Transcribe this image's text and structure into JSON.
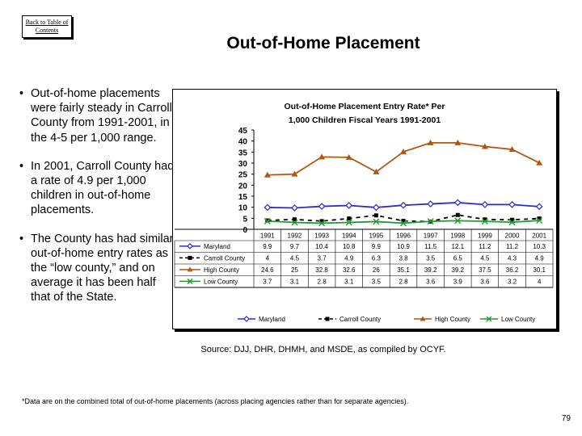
{
  "nav": {
    "back_link": "Back to Table of Contents"
  },
  "page": {
    "title": "Out-of-Home Placement",
    "bullets": [
      "Out-of-home placements were fairly steady in Carroll County from 1991-2001, in the 4-5 per 1,000 range.",
      "In 2001, Carroll County had a rate of 4.9 per 1,000 children in out-of-home placements.",
      "The County has had similar out-of-home entry rates as the “low county,” and on average it has been half that of the State."
    ],
    "source": "Source: DJJ, DHR, DHMH, and MSDE, as compiled by OCYF.",
    "footnote": "*Data are on the combined total of out-of-home placements (across placing agencies rather than for separate agencies).",
    "page_number": "79"
  },
  "chart_data": {
    "type": "line",
    "title_line1": "Out-of-Home Placement Entry Rate* Per",
    "title_line2": "1,000 Children Fiscal Years 1991-2001",
    "categories": [
      "1991",
      "1992",
      "1993",
      "1994",
      "1995",
      "1996",
      "1997",
      "1998",
      "1999",
      "2000",
      "2001"
    ],
    "ylim": [
      0,
      45
    ],
    "yticks": [
      "0",
      "5",
      "10",
      "15",
      "20",
      "25",
      "30",
      "35",
      "40",
      "45"
    ],
    "legend_position": "bottom",
    "series": [
      {
        "name": "Maryland",
        "color": "#2b2bd0",
        "marker": "diamond-open",
        "dash": "",
        "values": [
          9.9,
          9.7,
          10.4,
          10.8,
          9.9,
          10.9,
          11.5,
          12.1,
          11.2,
          11.2,
          10.3
        ],
        "labels": [
          "9.9",
          "9.7",
          "10.4",
          "10.8",
          "9.9",
          "10.9",
          "11.5",
          "12.1",
          "11.2",
          "11.2",
          "10.3"
        ]
      },
      {
        "name": "Carroll County",
        "color": "#000000",
        "marker": "square",
        "dash": "5,5",
        "values": [
          4,
          4.5,
          3.7,
          4.9,
          6.3,
          3.8,
          3.5,
          6.5,
          4.5,
          4.3,
          4.9
        ],
        "labels": [
          "4",
          "4.5",
          "3.7",
          "4.9",
          "6.3",
          "3.8",
          "3.5",
          "6.5",
          "4.5",
          "4.3",
          "4.9"
        ]
      },
      {
        "name": "High County",
        "color": "#b5560f",
        "marker": "triangle",
        "dash": "",
        "values": [
          24.6,
          25,
          32.8,
          32.6,
          26,
          35.1,
          39.2,
          39.2,
          37.5,
          36.2,
          30.1
        ],
        "labels": [
          "24.6",
          "25",
          "32.8",
          "32.6",
          "26",
          "35.1",
          "39.2",
          "39.2",
          "37.5",
          "36.2",
          "30.1"
        ]
      },
      {
        "name": "Low County",
        "color": "#1f9a2e",
        "marker": "x",
        "dash": "",
        "values": [
          3.7,
          3.1,
          2.8,
          3.1,
          3.5,
          2.8,
          3.6,
          3.9,
          3.6,
          3.2,
          4
        ],
        "labels": [
          "3.7",
          "3.1",
          "2.8",
          "3.1",
          "3.5",
          "2.8",
          "3.6",
          "3.9",
          "3.6",
          "3.2",
          "4"
        ]
      }
    ]
  }
}
